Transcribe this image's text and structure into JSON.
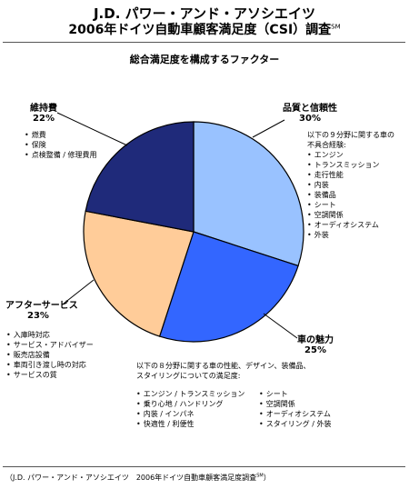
{
  "header": {
    "company": "J.D. パワー・アンド・アソシエイツ",
    "survey_title": "2006年ドイツ自動車顧客満足度（CSI）調査",
    "survey_mark": "SM"
  },
  "chart_data": {
    "type": "pie",
    "title": "総合満足度を構成するファクター",
    "start_angle_deg": 0,
    "direction": "clockwise",
    "slices": [
      {
        "name": "品質と信頼性",
        "value": 30,
        "label": "30%",
        "color": "#99c2ff"
      },
      {
        "name": "車の魅力",
        "value": 25,
        "label": "25%",
        "color": "#3366ff"
      },
      {
        "name": "アフターサービス",
        "value": 23,
        "label": "23%",
        "color": "#ffcc99"
      },
      {
        "name": "維持費",
        "value": 22,
        "label": "22%",
        "color": "#1f2a7a"
      }
    ]
  },
  "details": {
    "quality": {
      "intro": [
        "以下の９分野に関する車の",
        "不具合経験:"
      ],
      "items": [
        "エンジン",
        "トランスミッション",
        "走行性能",
        "内装",
        "装備品",
        "シート",
        "空調関係",
        "オーディオシステム",
        "外装"
      ]
    },
    "appeal": {
      "intro": [
        "以下の８分野に関する車の性能、デザイン、装備品、",
        "スタイリングについての満足度:"
      ],
      "items_left": [
        "エンジン / トランスミッション",
        "乗り心地 / ハンドリング",
        "内装 / インパネ",
        "快適性 / 利便性"
      ],
      "items_right": [
        "シート",
        "空調関係",
        "オーディオシステム",
        "スタイリング / 外装"
      ]
    },
    "service": {
      "items": [
        "入庫時対応",
        "サービス・アドバイザー",
        "販売店設備",
        "車両引き渡し時の対応",
        "サービスの質"
      ]
    },
    "cost": {
      "items": [
        "燃費",
        "保険",
        "点検整備 / 修理費用"
      ]
    }
  },
  "footer": {
    "text": "（J.D. パワー・アンド・アソシエイツ　2006年ドイツ自動車顧客満足度調査",
    "mark": "SM",
    "close": "）"
  }
}
